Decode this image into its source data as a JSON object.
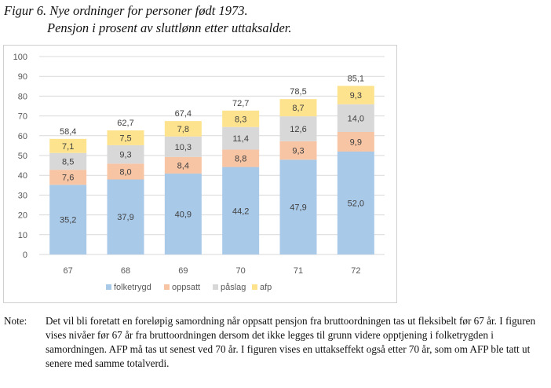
{
  "figure": {
    "title": "Figur 6. Nye ordninger for personer født 1973.",
    "subtitle": "Pensjon i prosent av sluttlønn etter uttaksalder."
  },
  "note": {
    "label": "Note:",
    "text": "Det vil bli foretatt en foreløpig samordning når oppsatt pensjon fra bruttoordningen tas ut fleksibelt før 67 år. I figuren vises nivåer før 67 år fra bruttoordningen dersom det ikke legges til grunn videre opptjening i folketrygden i samordningen. AFP må tas ut senest ved 70 år. I figuren vises en uttakseffekt også etter 70 år, som om AFP ble tatt ut senere med samme totalverdi."
  },
  "chart_data": {
    "type": "bar",
    "stacked": true,
    "categories": [
      "67",
      "68",
      "69",
      "70",
      "71",
      "72"
    ],
    "series": [
      {
        "name": "folketrygd",
        "color": "#a9c9e8",
        "values": [
          35.2,
          37.9,
          40.9,
          44.2,
          47.9,
          52.0
        ],
        "labels": [
          "35,2",
          "37,9",
          "40,9",
          "44,2",
          "47,9",
          "52,0"
        ]
      },
      {
        "name": "oppsatt",
        "color": "#f7c4a4",
        "values": [
          7.6,
          8.0,
          8.4,
          8.8,
          9.3,
          9.9
        ],
        "labels": [
          "7,6",
          "8,0",
          "8,4",
          "8,8",
          "9,3",
          "9,9"
        ]
      },
      {
        "name": "påslag",
        "color": "#d8d8d8",
        "values": [
          8.5,
          9.3,
          10.3,
          11.4,
          12.6,
          14.0
        ],
        "labels": [
          "8,5",
          "9,3",
          "10,3",
          "11,4",
          "12,6",
          "14,0"
        ]
      },
      {
        "name": "afp",
        "color": "#fde38e",
        "values": [
          7.1,
          7.5,
          7.8,
          8.3,
          8.7,
          9.3
        ],
        "labels": [
          "7,1",
          "7,5",
          "7,8",
          "8,3",
          "8,7",
          "9,3"
        ]
      }
    ],
    "totals": [
      58.4,
      62.7,
      67.4,
      72.7,
      78.5,
      85.1
    ],
    "total_labels": [
      "58,4",
      "62,7",
      "67,4",
      "72,7",
      "78,5",
      "85,1"
    ],
    "yticks": [
      "0",
      "10",
      "20",
      "30",
      "40",
      "50",
      "60",
      "70",
      "80",
      "90",
      "100"
    ],
    "ylim": [
      0,
      100
    ],
    "grid": true,
    "legend_position": "bottom"
  }
}
